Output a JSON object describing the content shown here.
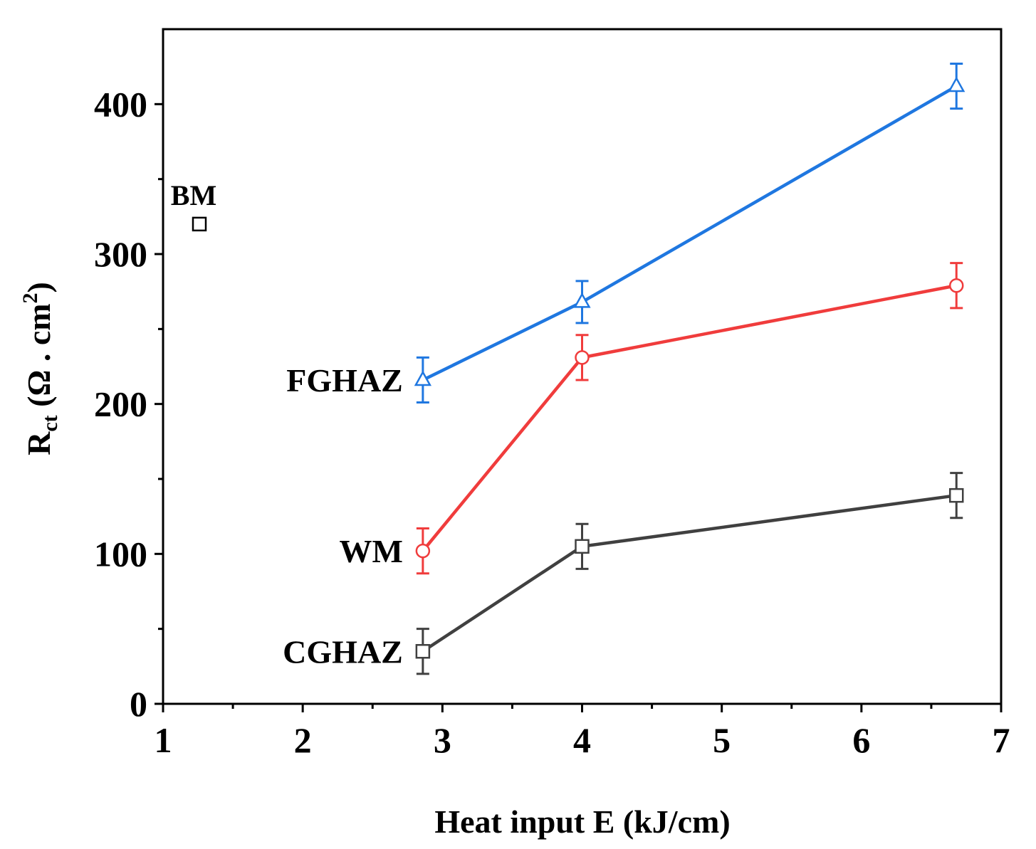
{
  "chart_data": {
    "type": "line",
    "xlabel": "Heat input E (kJ/cm)",
    "ylabel_main": "R",
    "ylabel_sub": "ct",
    "ylabel_unit": "(Ω . cm",
    "ylabel_sup": "2",
    "ylabel_close": ")",
    "xlim": [
      1,
      7
    ],
    "ylim": [
      0,
      450
    ],
    "xticks": [
      1,
      2,
      3,
      4,
      5,
      6,
      7
    ],
    "yticks": [
      0,
      100,
      200,
      300,
      400
    ],
    "grid": false,
    "series": [
      {
        "name": "FGHAZ",
        "color": "#1f77e0",
        "marker": "triangle",
        "x": [
          2.86,
          4.0,
          6.68
        ],
        "y": [
          216,
          268,
          412
        ],
        "err": [
          15,
          14,
          15
        ]
      },
      {
        "name": "WM",
        "color": "#f03c3c",
        "marker": "circle",
        "x": [
          2.86,
          4.0,
          6.68
        ],
        "y": [
          102,
          231,
          279
        ],
        "err": [
          15,
          15,
          15
        ]
      },
      {
        "name": "CGHAZ",
        "color": "#404040",
        "marker": "square",
        "x": [
          2.86,
          4.0,
          6.68
        ],
        "y": [
          35,
          105,
          139
        ],
        "err": [
          15,
          15,
          15
        ]
      }
    ],
    "points": [
      {
        "name": "BM",
        "color": "#000000",
        "marker": "square",
        "x": 1.26,
        "y": 320
      }
    ]
  }
}
